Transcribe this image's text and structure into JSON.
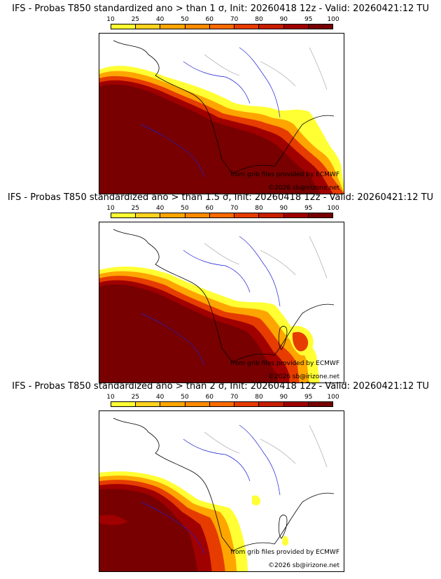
{
  "panels": [
    {
      "title": "IFS - Probas T850  standardized ano > than 1 σ, Init: 20260418 12z - Valid: 20260421:12 TU",
      "credit_source": "from grib files provided by ECMWF",
      "credit_copyright": "©2026 sb@irizone.net"
    },
    {
      "title": "IFS - Probas T850  standardized ano > than 1.5 σ, Init: 20260418 12z - Valid: 20260421:12 TU",
      "credit_source": "from grib files provided by ECMWF",
      "credit_copyright": "©2026 sb@irizone.net"
    },
    {
      "title": "IFS - Probas T850  standardized ano > than 2 σ, Init: 20260418 12z - Valid: 20260421:12 TU",
      "credit_source": "from grib files provided by ECMWF",
      "credit_copyright": "©2026 sb@irizone.net"
    }
  ],
  "legend": {
    "ticks": [
      "10",
      "25",
      "40",
      "50",
      "60",
      "70",
      "80",
      "90",
      "95",
      "100"
    ],
    "colors": [
      "#ffff33",
      "#ffd21e",
      "#ffa500",
      "#ff8a00",
      "#ff6a00",
      "#e63c00",
      "#c81e00",
      "#a00000",
      "#780000"
    ]
  },
  "map_colors": {
    "land_line": "#000000",
    "river": "#1f1fd6",
    "border_inner": "#9a9a9a"
  }
}
